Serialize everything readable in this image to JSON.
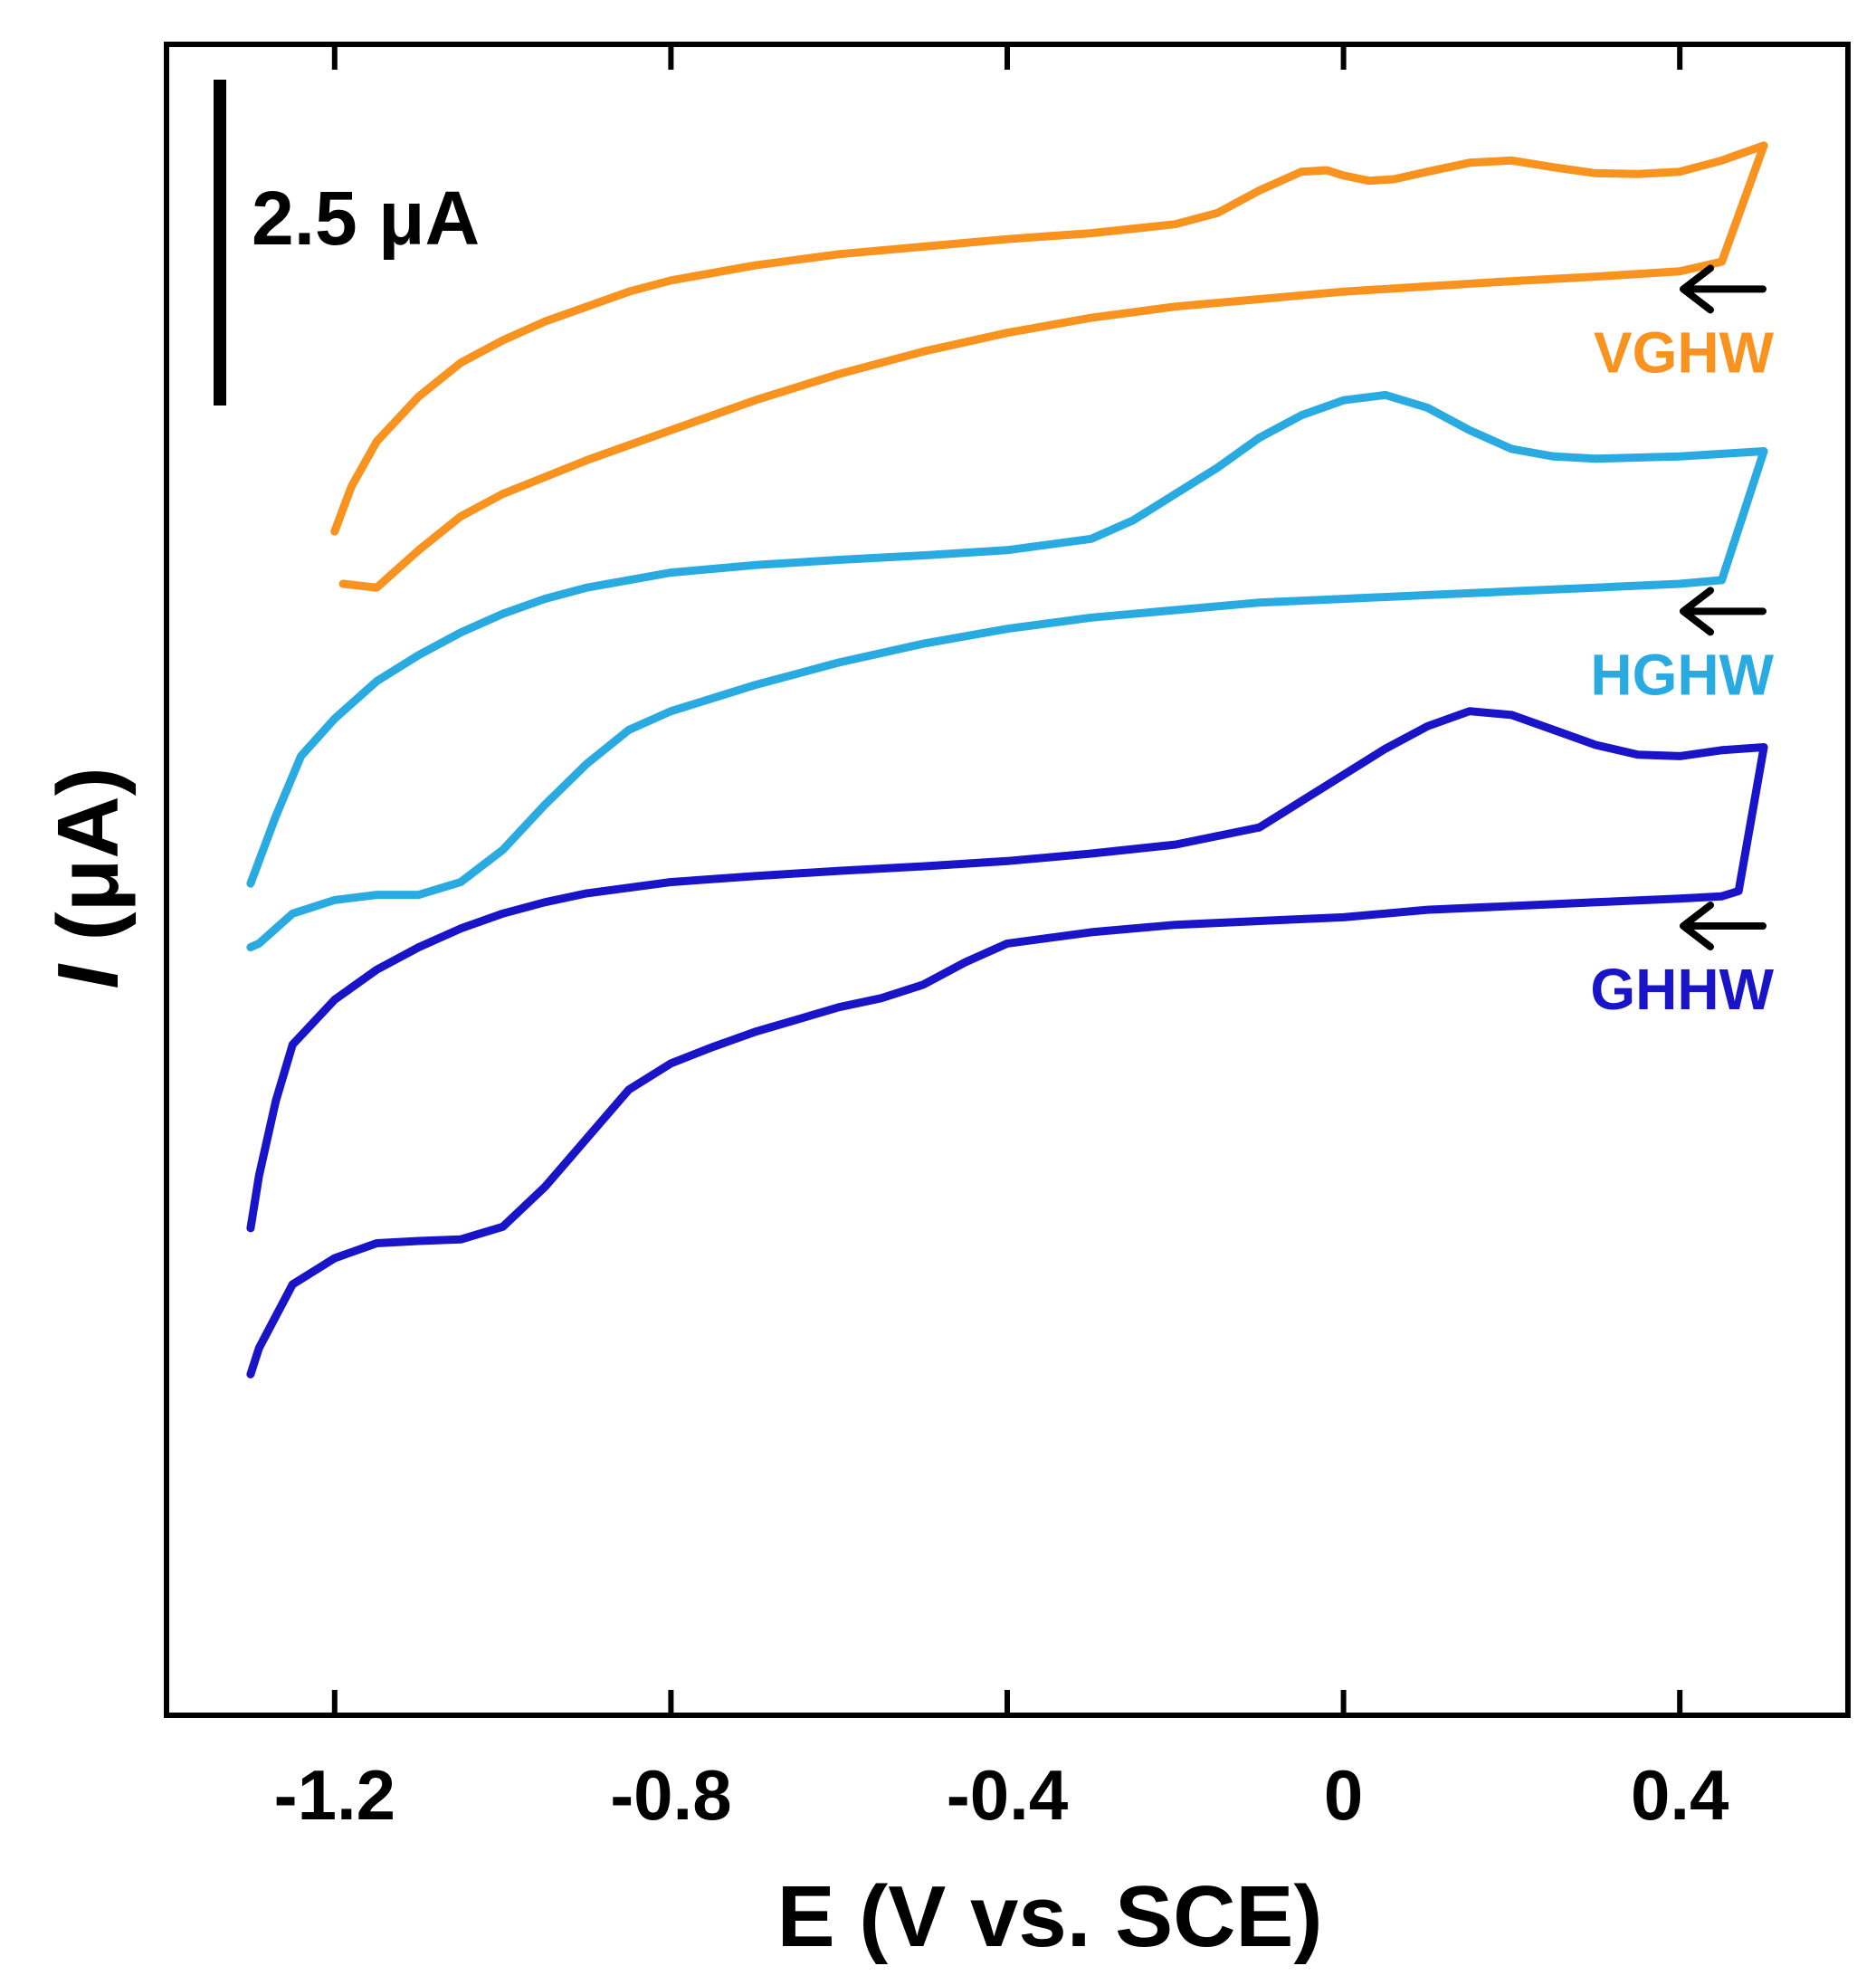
{
  "chart_data": {
    "type": "line",
    "title": "",
    "xlabel": "E (V vs. SCE)",
    "ylabel": "I (μA)",
    "ylabel_italic_part": "I",
    "ylabel_rest": " (μA)",
    "xlim": [
      -1.4,
      0.6
    ],
    "xticks": [
      -1.2,
      -0.8,
      -0.4,
      0,
      0.4
    ],
    "xtick_labels": [
      "-1.2",
      "-0.8",
      "-0.4",
      "0",
      "0.4"
    ],
    "ylim": [
      0,
      22.3
    ],
    "y_ticks_shown": false,
    "scale_bar": {
      "value": 2.5,
      "label": "2.5 μA"
    },
    "scan_direction_arrow": "←",
    "grid": false,
    "series": [
      {
        "name": "VGHW",
        "color": "#F7931E",
        "forward": [
          [
            -1.2,
            15.8
          ],
          [
            -1.18,
            16.4
          ],
          [
            -1.15,
            17.0
          ],
          [
            -1.1,
            17.6
          ],
          [
            -1.05,
            18.05
          ],
          [
            -1.0,
            18.35
          ],
          [
            -0.95,
            18.6
          ],
          [
            -0.9,
            18.8
          ],
          [
            -0.85,
            19.0
          ],
          [
            -0.8,
            19.15
          ],
          [
            -0.7,
            19.35
          ],
          [
            -0.6,
            19.5
          ],
          [
            -0.5,
            19.6
          ],
          [
            -0.4,
            19.7
          ],
          [
            -0.3,
            19.78
          ],
          [
            -0.2,
            19.9
          ],
          [
            -0.15,
            20.05
          ],
          [
            -0.1,
            20.35
          ],
          [
            -0.05,
            20.6
          ],
          [
            -0.02,
            20.62
          ],
          [
            0.0,
            20.55
          ],
          [
            0.03,
            20.48
          ],
          [
            0.06,
            20.5
          ],
          [
            0.1,
            20.6
          ],
          [
            0.15,
            20.72
          ],
          [
            0.2,
            20.75
          ],
          [
            0.25,
            20.66
          ],
          [
            0.3,
            20.58
          ],
          [
            0.35,
            20.57
          ],
          [
            0.4,
            20.6
          ],
          [
            0.45,
            20.75
          ],
          [
            0.5,
            20.95
          ]
        ],
        "reverse": [
          [
            0.5,
            19.65
          ],
          [
            0.45,
            19.4
          ],
          [
            0.4,
            19.27
          ],
          [
            0.3,
            19.2
          ],
          [
            0.2,
            19.14
          ],
          [
            0.1,
            19.07
          ],
          [
            0.0,
            19.0
          ],
          [
            -0.1,
            18.9
          ],
          [
            -0.2,
            18.8
          ],
          [
            -0.3,
            18.65
          ],
          [
            -0.4,
            18.45
          ],
          [
            -0.5,
            18.2
          ],
          [
            -0.6,
            17.9
          ],
          [
            -0.7,
            17.55
          ],
          [
            -0.8,
            17.15
          ],
          [
            -0.9,
            16.75
          ],
          [
            -1.0,
            16.3
          ],
          [
            -1.05,
            16.0
          ],
          [
            -1.1,
            15.55
          ],
          [
            -1.15,
            15.05
          ],
          [
            -1.19,
            15.1
          ]
        ]
      },
      {
        "name": "HGHW",
        "color": "#29ABE2",
        "forward": [
          [
            -1.3,
            11.1
          ],
          [
            -1.27,
            12.0
          ],
          [
            -1.24,
            12.8
          ],
          [
            -1.2,
            13.3
          ],
          [
            -1.15,
            13.8
          ],
          [
            -1.1,
            14.15
          ],
          [
            -1.05,
            14.45
          ],
          [
            -1.0,
            14.7
          ],
          [
            -0.95,
            14.9
          ],
          [
            -0.9,
            15.05
          ],
          [
            -0.8,
            15.25
          ],
          [
            -0.7,
            15.35
          ],
          [
            -0.6,
            15.42
          ],
          [
            -0.5,
            15.48
          ],
          [
            -0.4,
            15.55
          ],
          [
            -0.3,
            15.7
          ],
          [
            -0.25,
            15.95
          ],
          [
            -0.2,
            16.3
          ],
          [
            -0.15,
            16.65
          ],
          [
            -0.1,
            17.05
          ],
          [
            -0.05,
            17.35
          ],
          [
            0.0,
            17.55
          ],
          [
            0.05,
            17.62
          ],
          [
            0.1,
            17.45
          ],
          [
            0.15,
            17.15
          ],
          [
            0.2,
            16.9
          ],
          [
            0.25,
            16.8
          ],
          [
            0.3,
            16.77
          ],
          [
            0.4,
            16.8
          ],
          [
            0.5,
            16.87
          ]
        ],
        "reverse": [
          [
            0.5,
            15.35
          ],
          [
            0.45,
            15.15
          ],
          [
            0.4,
            15.1
          ],
          [
            0.3,
            15.05
          ],
          [
            0.2,
            15.0
          ],
          [
            0.1,
            14.95
          ],
          [
            0.0,
            14.9
          ],
          [
            -0.1,
            14.85
          ],
          [
            -0.2,
            14.75
          ],
          [
            -0.3,
            14.65
          ],
          [
            -0.4,
            14.5
          ],
          [
            -0.5,
            14.3
          ],
          [
            -0.6,
            14.05
          ],
          [
            -0.7,
            13.75
          ],
          [
            -0.8,
            13.4
          ],
          [
            -0.85,
            13.15
          ],
          [
            -0.9,
            12.7
          ],
          [
            -0.95,
            12.15
          ],
          [
            -1.0,
            11.55
          ],
          [
            -1.05,
            11.12
          ],
          [
            -1.1,
            10.95
          ],
          [
            -1.15,
            10.95
          ],
          [
            -1.2,
            10.88
          ],
          [
            -1.25,
            10.7
          ],
          [
            -1.29,
            10.3
          ],
          [
            -1.3,
            10.25
          ]
        ]
      },
      {
        "name": "GHHW",
        "color": "#1A14C8",
        "forward": [
          [
            -1.3,
            6.5
          ],
          [
            -1.29,
            7.2
          ],
          [
            -1.27,
            8.2
          ],
          [
            -1.25,
            8.95
          ],
          [
            -1.2,
            9.55
          ],
          [
            -1.15,
            9.95
          ],
          [
            -1.1,
            10.25
          ],
          [
            -1.05,
            10.5
          ],
          [
            -1.0,
            10.7
          ],
          [
            -0.95,
            10.85
          ],
          [
            -0.9,
            10.97
          ],
          [
            -0.8,
            11.12
          ],
          [
            -0.7,
            11.2
          ],
          [
            -0.6,
            11.27
          ],
          [
            -0.5,
            11.33
          ],
          [
            -0.4,
            11.4
          ],
          [
            -0.3,
            11.5
          ],
          [
            -0.2,
            11.62
          ],
          [
            -0.1,
            11.85
          ],
          [
            -0.05,
            12.2
          ],
          [
            0.0,
            12.55
          ],
          [
            0.05,
            12.9
          ],
          [
            0.1,
            13.2
          ],
          [
            0.15,
            13.4
          ],
          [
            0.2,
            13.35
          ],
          [
            0.25,
            13.15
          ],
          [
            0.3,
            12.95
          ],
          [
            0.35,
            12.82
          ],
          [
            0.4,
            12.8
          ],
          [
            0.45,
            12.88
          ],
          [
            0.5,
            12.92
          ]
        ],
        "reverse": [
          [
            0.5,
            11.15
          ],
          [
            0.47,
            11.0
          ],
          [
            0.45,
            10.93
          ],
          [
            0.4,
            10.9
          ],
          [
            0.3,
            10.85
          ],
          [
            0.2,
            10.8
          ],
          [
            0.1,
            10.75
          ],
          [
            0.0,
            10.65
          ],
          [
            -0.1,
            10.6
          ],
          [
            -0.2,
            10.55
          ],
          [
            -0.3,
            10.45
          ],
          [
            -0.4,
            10.3
          ],
          [
            -0.45,
            10.05
          ],
          [
            -0.5,
            9.75
          ],
          [
            -0.55,
            9.57
          ],
          [
            -0.6,
            9.45
          ],
          [
            -0.7,
            9.12
          ],
          [
            -0.75,
            8.92
          ],
          [
            -0.8,
            8.7
          ],
          [
            -0.85,
            8.35
          ],
          [
            -0.9,
            7.7
          ],
          [
            -0.95,
            7.05
          ],
          [
            -1.0,
            6.52
          ],
          [
            -1.05,
            6.35
          ],
          [
            -1.1,
            6.33
          ],
          [
            -1.15,
            6.3
          ],
          [
            -1.2,
            6.1
          ],
          [
            -1.25,
            5.75
          ],
          [
            -1.29,
            4.9
          ],
          [
            -1.3,
            4.55
          ]
        ]
      }
    ]
  }
}
